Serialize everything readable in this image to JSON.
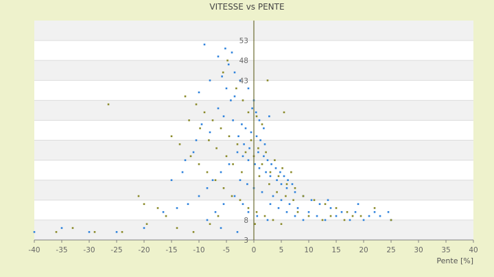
{
  "chart_data": {
    "type": "scatter",
    "title": "VITESSE vs PENTE",
    "xlabel": "Pente [%]",
    "ylabel": "",
    "xlim": [
      -40,
      40
    ],
    "ylim": [
      3,
      58
    ],
    "x_ticks": [
      -40,
      -35,
      -30,
      -25,
      -20,
      -15,
      -10,
      -5,
      0,
      5,
      10,
      15,
      20,
      25,
      30,
      35,
      40
    ],
    "x_tick_labels": [
      "-40",
      "-35",
      "-30",
      "-25",
      "-20",
      "-15",
      "-10",
      "-5",
      "0",
      "5",
      "10",
      "15",
      "20",
      "25",
      "30",
      "35",
      "40"
    ],
    "y_ticks_visible": [
      3,
      8,
      13,
      18,
      23,
      28,
      33,
      38,
      43,
      48,
      53
    ],
    "y_tick_labels_visible": [
      "3",
      "8",
      "43",
      "48",
      "53"
    ],
    "y_gridlines": [
      8,
      13,
      18,
      23,
      28,
      33,
      38,
      43,
      48,
      53
    ],
    "band_fills": [
      "#f1f1f1",
      "#ffffff"
    ],
    "grid": true,
    "legend": "none",
    "series": [
      {
        "color": "#2e82dc",
        "values": [
          [
            -5.2,
            51
          ],
          [
            -4.6,
            47
          ],
          [
            -5.8,
            44
          ],
          [
            -5.0,
            41
          ],
          [
            -4.2,
            38
          ],
          [
            -3.5,
            39
          ],
          [
            -6.5,
            36
          ],
          [
            -5.5,
            34
          ],
          [
            -3.8,
            33
          ],
          [
            -2.2,
            32
          ],
          [
            -1.5,
            31
          ],
          [
            -0.5,
            30
          ],
          [
            0.5,
            29
          ],
          [
            1.2,
            28
          ],
          [
            2.0,
            27
          ],
          [
            -2.8,
            29
          ],
          [
            -1.8,
            27
          ],
          [
            -0.8,
            26
          ],
          [
            0.8,
            25
          ],
          [
            1.8,
            24
          ],
          [
            2.5,
            23
          ],
          [
            3.2,
            22
          ],
          [
            4.0,
            21
          ],
          [
            4.8,
            20
          ],
          [
            5.5,
            19
          ],
          [
            6.2,
            18
          ],
          [
            7.0,
            17
          ],
          [
            -3.0,
            25
          ],
          [
            -2.0,
            24
          ],
          [
            -1.0,
            23
          ],
          [
            0.2,
            22
          ],
          [
            1.0,
            21
          ],
          [
            2.2,
            20
          ],
          [
            3.0,
            19
          ],
          [
            4.2,
            18
          ],
          [
            5.0,
            17
          ],
          [
            6.0,
            16
          ],
          [
            7.5,
            15
          ],
          [
            9.0,
            14
          ],
          [
            10.5,
            13
          ],
          [
            12.0,
            12
          ],
          [
            14.0,
            11
          ],
          [
            16.0,
            10
          ],
          [
            18.5,
            10
          ],
          [
            21.0,
            9
          ],
          [
            23.0,
            9
          ],
          [
            25.0,
            8
          ],
          [
            -4.5,
            22
          ],
          [
            -6.0,
            20
          ],
          [
            -7.5,
            18
          ],
          [
            -8.5,
            16
          ],
          [
            -10.0,
            14
          ],
          [
            -12.0,
            12
          ],
          [
            -14.0,
            11
          ],
          [
            -16.5,
            10
          ],
          [
            -20.0,
            6
          ],
          [
            -25.0,
            5
          ],
          [
            -30.0,
            5
          ],
          [
            -35.0,
            6
          ],
          [
            -40.0,
            5
          ],
          [
            -9.5,
            32
          ],
          [
            -8.0,
            30
          ],
          [
            -10.5,
            28
          ],
          [
            -11.0,
            25
          ],
          [
            -12.5,
            23
          ],
          [
            -13.0,
            20
          ],
          [
            -15.0,
            18
          ],
          [
            -2.5,
            18
          ],
          [
            -1.2,
            17
          ],
          [
            0.0,
            16
          ],
          [
            1.5,
            15
          ],
          [
            3.5,
            14
          ],
          [
            5.0,
            13
          ],
          [
            6.5,
            12
          ],
          [
            8.0,
            11
          ],
          [
            10.0,
            10
          ],
          [
            11.5,
            9
          ],
          [
            13.0,
            8
          ],
          [
            -3.5,
            14
          ],
          [
            -2.0,
            12
          ],
          [
            -1.0,
            10
          ],
          [
            0.6,
            9
          ],
          [
            2.5,
            8
          ],
          [
            -5.5,
            12
          ],
          [
            -7.0,
            10
          ],
          [
            -8.5,
            8
          ],
          [
            -6.0,
            6
          ],
          [
            -3.0,
            5
          ],
          [
            0.0,
            38
          ],
          [
            0.4,
            35
          ],
          [
            1.0,
            33
          ],
          [
            1.8,
            31
          ],
          [
            2.8,
            34
          ],
          [
            -0.3,
            36
          ],
          [
            -1.0,
            41
          ],
          [
            -2.5,
            43
          ],
          [
            -3.5,
            45
          ],
          [
            -4.0,
            50
          ],
          [
            -6.5,
            49
          ],
          [
            -9.0,
            52
          ],
          [
            -10.0,
            40
          ],
          [
            -8.0,
            43
          ],
          [
            3.0,
            12
          ],
          [
            4.5,
            11
          ],
          [
            6.0,
            10
          ],
          [
            7.5,
            9
          ],
          [
            9.0,
            8
          ],
          [
            15.0,
            9
          ],
          [
            17.5,
            8
          ],
          [
            20.0,
            8
          ],
          [
            22.0,
            10
          ],
          [
            24.5,
            10
          ],
          [
            19.0,
            12
          ],
          [
            13.5,
            13
          ]
        ]
      },
      {
        "color": "#8a8a2a",
        "values": [
          [
            -26.5,
            37
          ],
          [
            -4.8,
            48
          ],
          [
            -5.6,
            45
          ],
          [
            -3.2,
            41
          ],
          [
            -2.0,
            38
          ],
          [
            -1.0,
            35
          ],
          [
            0.5,
            34
          ],
          [
            1.5,
            32
          ],
          [
            -12.5,
            39
          ],
          [
            -10.5,
            37
          ],
          [
            -9.0,
            35
          ],
          [
            -7.5,
            33
          ],
          [
            -6.0,
            31
          ],
          [
            -4.5,
            29
          ],
          [
            -3.0,
            27
          ],
          [
            -1.5,
            25
          ],
          [
            0.0,
            24
          ],
          [
            1.5,
            22
          ],
          [
            3.0,
            20
          ],
          [
            4.5,
            19
          ],
          [
            6.0,
            17
          ],
          [
            7.5,
            16
          ],
          [
            9.0,
            14
          ],
          [
            11.0,
            13
          ],
          [
            13.0,
            12
          ],
          [
            15.0,
            11
          ],
          [
            17.0,
            10
          ],
          [
            19.5,
            9
          ],
          [
            22.0,
            11
          ],
          [
            25.0,
            8
          ],
          [
            -15.0,
            29
          ],
          [
            -13.5,
            27
          ],
          [
            -11.5,
            24
          ],
          [
            -10.0,
            22
          ],
          [
            -8.5,
            20
          ],
          [
            -7.0,
            18
          ],
          [
            -5.5,
            16
          ],
          [
            -4.0,
            14
          ],
          [
            -2.5,
            13
          ],
          [
            -1.0,
            11
          ],
          [
            0.5,
            10
          ],
          [
            2.0,
            9
          ],
          [
            3.5,
            8
          ],
          [
            5.0,
            7
          ],
          [
            -20.0,
            12
          ],
          [
            -21.0,
            14
          ],
          [
            -17.5,
            11
          ],
          [
            -16.0,
            9
          ],
          [
            -19.5,
            7
          ],
          [
            -24.0,
            5
          ],
          [
            -29.0,
            5
          ],
          [
            -33.0,
            6
          ],
          [
            -36.0,
            5
          ],
          [
            -14.0,
            6
          ],
          [
            -11.0,
            5
          ],
          [
            -8.0,
            7
          ],
          [
            -6.5,
            9
          ],
          [
            2.5,
            43
          ],
          [
            5.5,
            35
          ],
          [
            0.2,
            7
          ],
          [
            8.0,
            10
          ],
          [
            10.0,
            9
          ],
          [
            12.5,
            8
          ],
          [
            14.0,
            9
          ],
          [
            16.5,
            8
          ],
          [
            18.0,
            9
          ],
          [
            -0.5,
            28
          ],
          [
            0.8,
            26
          ],
          [
            2.2,
            25
          ],
          [
            3.8,
            23
          ],
          [
            5.2,
            21
          ],
          [
            6.8,
            20
          ],
          [
            -2.2,
            20
          ],
          [
            -3.8,
            22
          ],
          [
            -5.0,
            24
          ],
          [
            -6.8,
            26
          ],
          [
            -8.2,
            28
          ],
          [
            -9.8,
            31
          ],
          [
            -11.8,
            33
          ],
          [
            1.0,
            19
          ],
          [
            2.8,
            17
          ],
          [
            4.2,
            15
          ],
          [
            5.8,
            14
          ],
          [
            7.2,
            13
          ]
        ]
      }
    ]
  }
}
